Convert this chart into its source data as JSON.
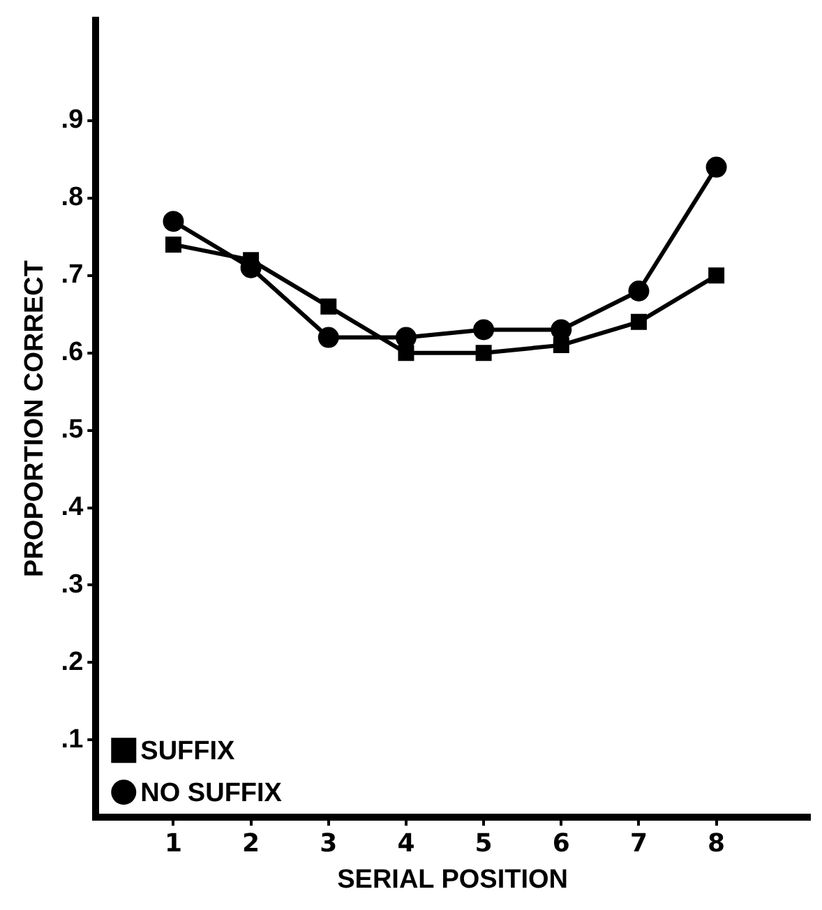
{
  "chart_data": {
    "type": "line",
    "xlabel": "SERIAL POSITION",
    "ylabel": "PROPORTION CORRECT",
    "x": [
      1,
      2,
      3,
      4,
      5,
      6,
      7,
      8
    ],
    "series": [
      {
        "name": "SUFFIX",
        "color": "#000000",
        "marker": "square",
        "values": [
          0.74,
          0.72,
          0.66,
          0.6,
          0.6,
          0.61,
          0.64,
          0.7
        ]
      },
      {
        "name": "NO SUFFIX",
        "color": "#000000",
        "marker": "circle",
        "values": [
          0.77,
          0.71,
          0.62,
          0.62,
          0.63,
          0.63,
          0.68,
          0.84
        ]
      }
    ],
    "xlim": [
      0,
      9.2
    ],
    "xticks": [
      1,
      2,
      3,
      4,
      5,
      6,
      7,
      8
    ],
    "ylim": [
      0,
      1.03
    ],
    "yticks": [
      {
        "value": 0.1,
        "label": ".1"
      },
      {
        "value": 0.2,
        "label": ".2"
      },
      {
        "value": 0.3,
        "label": ".3"
      },
      {
        "value": 0.4,
        "label": ".4"
      },
      {
        "value": 0.5,
        "label": ".5"
      },
      {
        "value": 0.6,
        "label": ".6"
      },
      {
        "value": 0.7,
        "label": ".7"
      },
      {
        "value": 0.8,
        "label": ".8"
      },
      {
        "value": 0.9,
        "label": ".9"
      }
    ],
    "grid": false,
    "legend": "bottom left",
    "line_style": "solid"
  }
}
